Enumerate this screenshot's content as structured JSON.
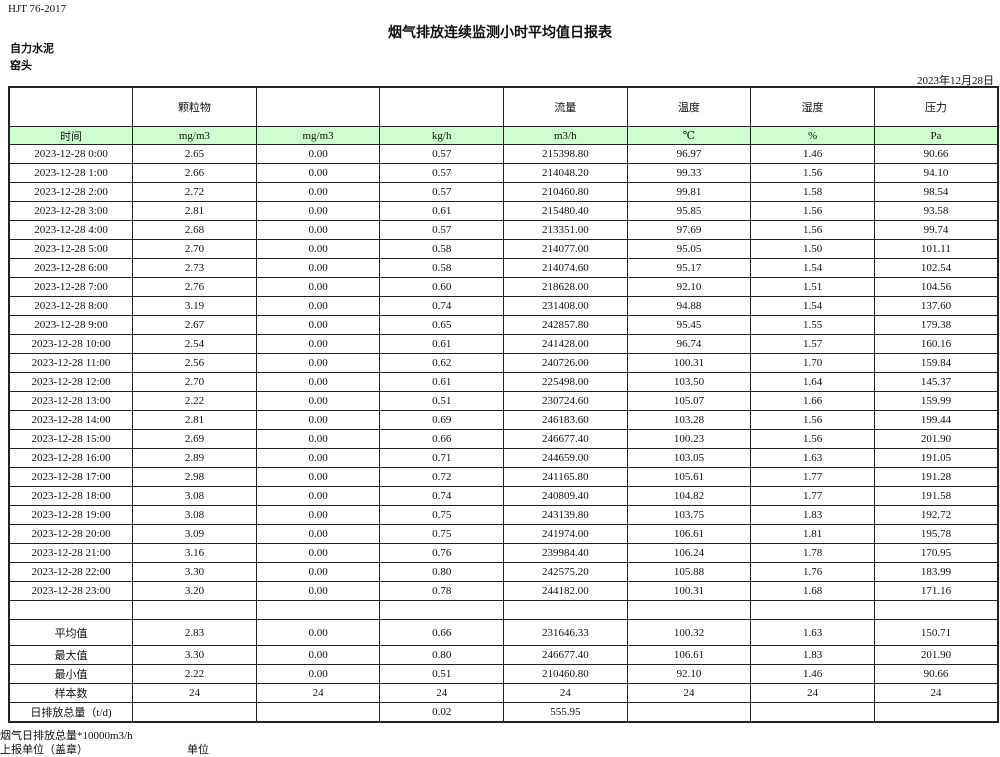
{
  "standard": "HJT  76-2017",
  "title": "烟气排放连续监测小时平均值日报表",
  "company": "自力水泥",
  "location": "窑头",
  "date": "2023年12月28日",
  "header": [
    "",
    "颗粒物",
    "",
    "",
    "流量",
    "温度",
    "湿度",
    "压力"
  ],
  "units": [
    "时间",
    "mg/m3",
    "mg/m3",
    "kg/h",
    "m3/h",
    "℃",
    "%",
    "Pa"
  ],
  "rows": [
    [
      "2023-12-28 0:00",
      "2.65",
      "0.00",
      "0.57",
      "215398.80",
      "96.97",
      "1.46",
      "90.66"
    ],
    [
      "2023-12-28 1:00",
      "2.66",
      "0.00",
      "0.57",
      "214048.20",
      "99.33",
      "1.56",
      "94.10"
    ],
    [
      "2023-12-28 2:00",
      "2.72",
      "0.00",
      "0.57",
      "210460.80",
      "99.81",
      "1.58",
      "98.54"
    ],
    [
      "2023-12-28 3:00",
      "2.81",
      "0.00",
      "0.61",
      "215480.40",
      "95.85",
      "1.56",
      "93.58"
    ],
    [
      "2023-12-28 4:00",
      "2.68",
      "0.00",
      "0.57",
      "213351.00",
      "97.69",
      "1.56",
      "99.74"
    ],
    [
      "2023-12-28 5:00",
      "2.70",
      "0.00",
      "0.58",
      "214077.00",
      "95.05",
      "1.50",
      "101.11"
    ],
    [
      "2023-12-28 6:00",
      "2.73",
      "0.00",
      "0.58",
      "214074.60",
      "95.17",
      "1.54",
      "102.54"
    ],
    [
      "2023-12-28 7:00",
      "2.76",
      "0.00",
      "0.60",
      "218628.00",
      "92.10",
      "1.51",
      "104.56"
    ],
    [
      "2023-12-28 8:00",
      "3.19",
      "0.00",
      "0.74",
      "231408.00",
      "94.88",
      "1.54",
      "137.60"
    ],
    [
      "2023-12-28 9:00",
      "2.67",
      "0.00",
      "0.65",
      "242857.80",
      "95.45",
      "1.55",
      "179.38"
    ],
    [
      "2023-12-28 10:00",
      "2.54",
      "0.00",
      "0.61",
      "241428.00",
      "96.74",
      "1.57",
      "160.16"
    ],
    [
      "2023-12-28 11:00",
      "2.56",
      "0.00",
      "0.62",
      "240726.00",
      "100.31",
      "1.70",
      "159.84"
    ],
    [
      "2023-12-28 12:00",
      "2.70",
      "0.00",
      "0.61",
      "225498.00",
      "103.50",
      "1.64",
      "145.37"
    ],
    [
      "2023-12-28 13:00",
      "2.22",
      "0.00",
      "0.51",
      "230724.60",
      "105.07",
      "1.66",
      "159.99"
    ],
    [
      "2023-12-28 14:00",
      "2.81",
      "0.00",
      "0.69",
      "246183.60",
      "103.28",
      "1.56",
      "199.44"
    ],
    [
      "2023-12-28 15:00",
      "2.69",
      "0.00",
      "0.66",
      "246677.40",
      "100.23",
      "1.56",
      "201.90"
    ],
    [
      "2023-12-28 16:00",
      "2.89",
      "0.00",
      "0.71",
      "244659.00",
      "103.05",
      "1.63",
      "191.05"
    ],
    [
      "2023-12-28 17:00",
      "2.98",
      "0.00",
      "0.72",
      "241165.80",
      "105.61",
      "1.77",
      "191.28"
    ],
    [
      "2023-12-28 18:00",
      "3.08",
      "0.00",
      "0.74",
      "240809.40",
      "104.82",
      "1.77",
      "191.58"
    ],
    [
      "2023-12-28 19:00",
      "3.08",
      "0.00",
      "0.75",
      "243139.80",
      "103.75",
      "1.83",
      "192.72"
    ],
    [
      "2023-12-28 20:00",
      "3.09",
      "0.00",
      "0.75",
      "241974.00",
      "106.61",
      "1.81",
      "195.78"
    ],
    [
      "2023-12-28 21:00",
      "3.16",
      "0.00",
      "0.76",
      "239984.40",
      "106.24",
      "1.78",
      "170.95"
    ],
    [
      "2023-12-28 22:00",
      "3.30",
      "0.00",
      "0.80",
      "242575.20",
      "105.88",
      "1.76",
      "183.99"
    ],
    [
      "2023-12-28 23:00",
      "3.20",
      "0.00",
      "0.78",
      "244182.00",
      "100.31",
      "1.68",
      "171.16"
    ]
  ],
  "summary": [
    [
      "平均值",
      "2.83",
      "0.00",
      "0.66",
      "231646.33",
      "100.32",
      "1.63",
      "150.71"
    ],
    [
      "最大值",
      "3.30",
      "0.00",
      "0.80",
      "246677.40",
      "106.61",
      "1.83",
      "201.90"
    ],
    [
      "最小值",
      "2.22",
      "0.00",
      "0.51",
      "210460.80",
      "92.10",
      "1.46",
      "90.66"
    ],
    [
      "样本数",
      "24",
      "24",
      "24",
      "24",
      "24",
      "24",
      "24"
    ],
    [
      "日排放总量（t/d)",
      "",
      "",
      "0.02",
      "555.95",
      "",
      "",
      ""
    ]
  ],
  "footer": {
    "note": "烟气日排放总量*10000m3/h",
    "reporter_label": "上报单位（盖章）",
    "unit_label": "单位"
  },
  "colors": {
    "unit_row_bg": "#ccffcc"
  }
}
